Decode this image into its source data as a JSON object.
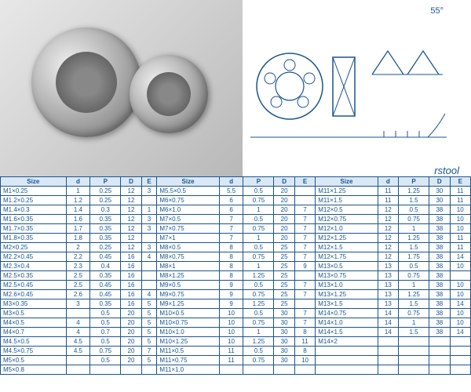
{
  "diagram": {
    "angle_label": "55°",
    "brand": "rstool"
  },
  "colors": {
    "header_bg": "#dae8f5",
    "border": "#1a5490",
    "text": "#1a5490"
  },
  "headers": [
    "Size",
    "d",
    "P",
    "D",
    "E"
  ],
  "rows": [
    [
      "M1×0.25",
      "1",
      "0.25",
      "12",
      "3",
      "M5.5×0.5",
      "5.5",
      "0.5",
      "20",
      "",
      "M11×1.25",
      "11",
      "1.25",
      "30",
      "11"
    ],
    [
      "M1.2×0.25",
      "1.2",
      "0.25",
      "12",
      "",
      "M6×0.75",
      "6",
      "0.75",
      "20",
      "",
      "M11×1.5",
      "11",
      "1.5",
      "30",
      "11"
    ],
    [
      "M1.4×0.3",
      "1.4",
      "0.3",
      "12",
      "1",
      "M6×1.0",
      "6",
      "1",
      "20",
      "7",
      "M12×0.5",
      "12",
      "0.5",
      "38",
      "10"
    ],
    [
      "M1.6×0.35",
      "1.6",
      "0.35",
      "12",
      "3",
      "M7×0.5",
      "7",
      "0.5",
      "20",
      "7",
      "M12×0.75",
      "12",
      "0.75",
      "38",
      "10"
    ],
    [
      "M1.7×0.35",
      "1.7",
      "0.35",
      "12",
      "3",
      "M7×0.75",
      "7",
      "0.75",
      "20",
      "7",
      "M12×1.0",
      "12",
      "1",
      "38",
      "10"
    ],
    [
      "M1.8×0.35",
      "1.8",
      "0.35",
      "12",
      "",
      "M7×1",
      "7",
      "1",
      "20",
      "7",
      "M12×1.25",
      "12",
      "1.25",
      "38",
      "11"
    ],
    [
      "M2×0.25",
      "2",
      "0.25",
      "12",
      "3",
      "M8×0.5",
      "8",
      "0.5",
      "25",
      "7",
      "M12×1.5",
      "12",
      "1.5",
      "38",
      "11"
    ],
    [
      "M2.2×0.45",
      "2.2",
      "0.45",
      "16",
      "4",
      "M8×0.75",
      "8",
      "0.75",
      "25",
      "7",
      "M12×1.75",
      "12",
      "1.75",
      "38",
      "14"
    ],
    [
      "M2.3×0.4",
      "2.3",
      "0.4",
      "16",
      "",
      "M8×1",
      "8",
      "1",
      "25",
      "9",
      "M13×0.5",
      "13",
      "0.5",
      "38",
      "10"
    ],
    [
      "M2.5×0.35",
      "2.5",
      "0.35",
      "16",
      "",
      "M8×1.25",
      "8",
      "1.25",
      "25",
      "",
      "M13×0.75",
      "13",
      "0.75",
      "38",
      ""
    ],
    [
      "M2.5×0.45",
      "2.5",
      "0.45",
      "16",
      "",
      "M9×0.5",
      "9",
      "0.5",
      "25",
      "7",
      "M13×1.0",
      "13",
      "1",
      "38",
      "10"
    ],
    [
      "M2.6×0.45",
      "2.6",
      "0.45",
      "16",
      "4",
      "M9×0.75",
      "9",
      "0.75",
      "25",
      "7",
      "M13×1.25",
      "13",
      "1.25",
      "38",
      "10"
    ],
    [
      "M3×0.35",
      "3",
      "0.35",
      "16",
      "5",
      "M9×1.25",
      "9",
      "1.25",
      "25",
      "",
      "M13×1.5",
      "13",
      "1.5",
      "38",
      "14"
    ],
    [
      "M3×0.5",
      "",
      "0.5",
      "20",
      "5",
      "M10×0.5",
      "10",
      "0.5",
      "30",
      "7",
      "M14×0.75",
      "14",
      "0.75",
      "38",
      "10"
    ],
    [
      "M4×0.5",
      "4",
      "0.5",
      "20",
      "5",
      "M10×0.75",
      "10",
      "0.75",
      "30",
      "7",
      "M14×1.0",
      "14",
      "1",
      "38",
      "10"
    ],
    [
      "M4×0.7",
      "4",
      "0.7",
      "20",
      "5",
      "M10×1.0",
      "10",
      "1",
      "30",
      "8",
      "M14×1.5",
      "14",
      "1.5",
      "38",
      "14"
    ],
    [
      "M4.5×0.5",
      "4.5",
      "0.5",
      "20",
      "5",
      "M10×1.25",
      "10",
      "1.25",
      "30",
      "11",
      "M14×2",
      "",
      "",
      "",
      ""
    ],
    [
      "M4.5×0.75",
      "4.5",
      "0.75",
      "20",
      "7",
      "M11×0.5",
      "11",
      "0.5",
      "30",
      "8",
      "",
      "",
      "",
      "",
      ""
    ],
    [
      "M5×0.5",
      "",
      "0.5",
      "20",
      "5",
      "M11×0.75",
      "11",
      "0.75",
      "30",
      "10",
      "",
      "",
      "",
      "",
      ""
    ],
    [
      "M5×0.8",
      "",
      "",
      "",
      "",
      "M11×1.0",
      "",
      "",
      "",
      "",
      "",
      "",
      "",
      "",
      ""
    ]
  ]
}
